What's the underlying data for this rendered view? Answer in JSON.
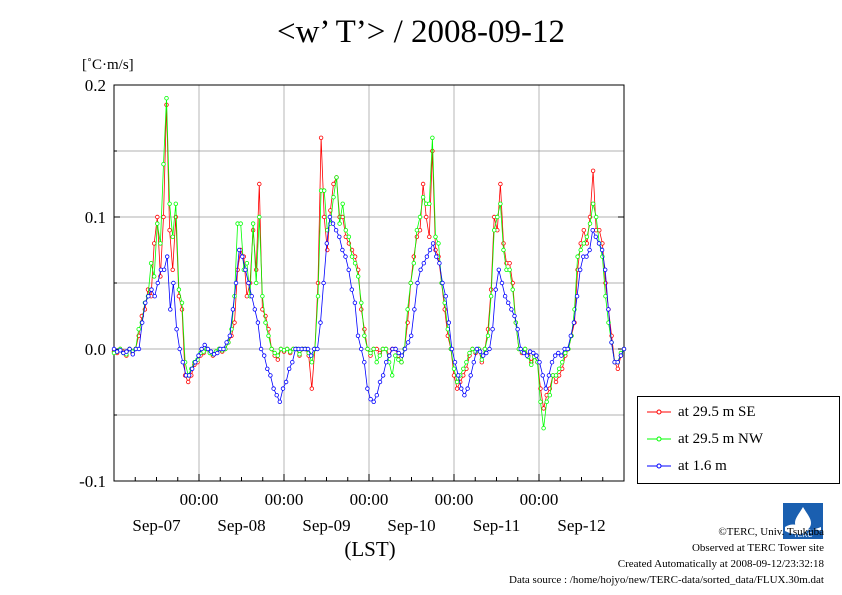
{
  "chart_data": {
    "type": "line",
    "title": "<w’ T’> / 2008-09-12",
    "unit_label": "[˚C·m/s]",
    "xlabel": "(LST)",
    "ylabel": "",
    "ylim": [
      -0.1,
      0.2
    ],
    "y_ticks": [
      "0.2",
      "0.1",
      "0.0",
      "-0.1"
    ],
    "y_tick_values": [
      0.2,
      0.1,
      0.0,
      -0.1
    ],
    "x_time_ticks": [
      "00:00",
      "00:00",
      "00:00",
      "00:00",
      "00:00"
    ],
    "x_date_ticks": [
      "Sep-07",
      "Sep-08",
      "Sep-09",
      "Sep-10",
      "Sep-11",
      "Sep-12"
    ],
    "xlim_hours": [
      0,
      144
    ],
    "grid": true,
    "legend_position": "right",
    "series": [
      {
        "name": "at 29.5 m SE",
        "color": "#ff0000",
        "values": [
          -0.002,
          -0.003,
          0.0,
          -0.002,
          -0.005,
          0.0,
          -0.003,
          0.0,
          0.01,
          0.025,
          0.03,
          0.045,
          0.04,
          0.08,
          0.1,
          0.055,
          0.1,
          0.185,
          0.09,
          0.06,
          0.1,
          0.04,
          0.03,
          -0.02,
          -0.025,
          -0.02,
          -0.012,
          -0.01,
          -0.005,
          -0.003,
          0.0,
          -0.002,
          -0.005,
          -0.003,
          0.0,
          -0.002,
          0.0,
          0.005,
          0.01,
          0.02,
          0.06,
          0.075,
          0.07,
          0.04,
          0.05,
          0.09,
          0.06,
          0.125,
          0.03,
          0.025,
          0.015,
          0.0,
          -0.005,
          -0.008,
          0.0,
          -0.002,
          0.0,
          -0.003,
          0.0,
          0.0,
          -0.005,
          0.0,
          0.0,
          -0.005,
          -0.03,
          0.0,
          0.05,
          0.16,
          0.1,
          0.075,
          0.105,
          0.125,
          0.13,
          0.1,
          0.1,
          0.085,
          0.08,
          0.075,
          0.07,
          0.06,
          0.03,
          0.015,
          0.0,
          -0.005,
          0.0,
          0.0,
          -0.003,
          0.0,
          0.0,
          -0.005,
          0.0,
          0.0,
          -0.005,
          -0.01,
          0.0,
          0.02,
          0.05,
          0.07,
          0.085,
          0.09,
          0.125,
          0.1,
          0.085,
          0.15,
          0.075,
          0.07,
          0.05,
          0.03,
          0.01,
          0.0,
          -0.02,
          -0.03,
          -0.025,
          -0.02,
          -0.015,
          -0.005,
          0.0,
          -0.003,
          0.0,
          -0.01,
          0.0,
          0.015,
          0.045,
          0.1,
          0.09,
          0.125,
          0.08,
          0.065,
          0.065,
          0.05,
          0.02,
          0.0,
          -0.003,
          0.0,
          -0.005,
          -0.01,
          -0.005,
          -0.01,
          -0.03,
          -0.045,
          -0.035,
          -0.03,
          -0.02,
          -0.025,
          -0.02,
          -0.015,
          -0.005,
          0.0,
          0.01,
          0.02,
          0.06,
          0.08,
          0.09,
          0.08,
          0.1,
          0.135,
          0.09,
          0.09,
          0.08,
          0.05,
          0.03,
          0.01,
          -0.01,
          -0.015,
          -0.005,
          0.0
        ]
      },
      {
        "name": "at 29.5 m NW",
        "color": "#00ff00",
        "values": [
          -0.003,
          -0.002,
          0.0,
          -0.003,
          -0.004,
          0.0,
          -0.002,
          0.0,
          0.015,
          0.02,
          0.035,
          0.04,
          0.065,
          0.055,
          0.095,
          0.08,
          0.14,
          0.19,
          0.11,
          0.085,
          0.11,
          0.045,
          0.035,
          -0.01,
          -0.02,
          -0.015,
          -0.01,
          -0.008,
          -0.003,
          -0.002,
          0.0,
          -0.003,
          -0.004,
          -0.002,
          0.0,
          -0.001,
          0.0,
          0.005,
          0.015,
          0.04,
          0.095,
          0.095,
          0.06,
          0.065,
          0.04,
          0.095,
          0.05,
          0.1,
          0.04,
          0.02,
          0.01,
          0.0,
          -0.003,
          -0.005,
          0.0,
          -0.001,
          0.0,
          -0.002,
          0.0,
          0.0,
          -0.004,
          0.0,
          0.0,
          -0.003,
          -0.01,
          0.0,
          0.04,
          0.12,
          0.12,
          0.09,
          0.095,
          0.115,
          0.13,
          0.095,
          0.11,
          0.09,
          0.085,
          0.07,
          0.065,
          0.055,
          0.035,
          0.01,
          0.0,
          -0.003,
          0.0,
          -0.01,
          -0.005,
          0.0,
          0.0,
          -0.01,
          -0.02,
          -0.005,
          -0.008,
          -0.01,
          0.0,
          0.03,
          0.05,
          0.065,
          0.09,
          0.1,
          0.115,
          0.11,
          0.11,
          0.16,
          0.085,
          0.08,
          0.05,
          0.035,
          0.015,
          0.0,
          -0.015,
          -0.025,
          -0.02,
          -0.015,
          -0.01,
          -0.003,
          0.0,
          -0.002,
          0.0,
          -0.008,
          0.0,
          0.01,
          0.04,
          0.09,
          0.1,
          0.11,
          0.075,
          0.06,
          0.06,
          0.045,
          0.02,
          0.0,
          -0.002,
          0.0,
          -0.006,
          -0.012,
          -0.006,
          -0.01,
          -0.04,
          -0.06,
          -0.04,
          -0.035,
          -0.02,
          -0.02,
          -0.015,
          -0.01,
          -0.003,
          0.0,
          0.01,
          0.03,
          0.07,
          0.075,
          0.08,
          0.085,
          0.095,
          0.11,
          0.1,
          0.08,
          0.07,
          0.04,
          0.02,
          0.005,
          -0.01,
          -0.01,
          -0.003,
          0.0
        ]
      },
      {
        "name": "at 1.6 m",
        "color": "#0000ff",
        "values": [
          0.0,
          -0.002,
          -0.001,
          -0.003,
          -0.002,
          0.0,
          -0.004,
          0.0,
          0.0,
          0.02,
          0.035,
          0.04,
          0.045,
          0.04,
          0.05,
          0.06,
          0.06,
          0.07,
          0.03,
          0.05,
          0.015,
          0.0,
          -0.01,
          -0.02,
          -0.02,
          -0.015,
          -0.01,
          -0.005,
          0.0,
          0.003,
          0.0,
          -0.002,
          -0.004,
          -0.003,
          0.0,
          0.0,
          0.005,
          0.01,
          0.03,
          0.05,
          0.075,
          0.07,
          0.06,
          0.05,
          0.04,
          0.03,
          0.02,
          0.0,
          -0.005,
          -0.015,
          -0.02,
          -0.03,
          -0.035,
          -0.04,
          -0.03,
          -0.025,
          -0.015,
          -0.01,
          0.0,
          0.0,
          0.0,
          0.0,
          0.0,
          -0.005,
          0.0,
          0.0,
          0.02,
          0.05,
          0.08,
          0.1,
          0.095,
          0.09,
          0.085,
          0.075,
          0.07,
          0.06,
          0.045,
          0.035,
          0.01,
          0.0,
          -0.01,
          -0.03,
          -0.038,
          -0.04,
          -0.035,
          -0.025,
          -0.02,
          -0.01,
          -0.005,
          0.0,
          0.0,
          -0.003,
          -0.005,
          0.0,
          0.005,
          0.01,
          0.03,
          0.05,
          0.06,
          0.065,
          0.07,
          0.075,
          0.08,
          0.07,
          0.065,
          0.05,
          0.04,
          0.02,
          0.0,
          -0.01,
          -0.02,
          -0.03,
          -0.035,
          -0.03,
          -0.02,
          -0.01,
          0.0,
          -0.002,
          -0.005,
          -0.003,
          0.0,
          0.015,
          0.045,
          0.06,
          0.05,
          0.04,
          0.035,
          0.03,
          0.025,
          0.015,
          0.0,
          -0.003,
          -0.005,
          -0.002,
          -0.003,
          -0.005,
          -0.01,
          -0.02,
          -0.03,
          -0.02,
          -0.01,
          -0.005,
          -0.003,
          -0.005,
          0.0,
          0.0,
          0.01,
          0.02,
          0.04,
          0.06,
          0.07,
          0.07,
          0.075,
          0.09,
          0.085,
          0.08,
          0.075,
          0.06,
          0.03,
          0.005,
          -0.01,
          -0.01,
          -0.005,
          0.0
        ]
      }
    ]
  },
  "credits": {
    "copyright": "©TERC, Univ. Tsukuba",
    "observed": "Observed at TERC Tower site",
    "created": "Created Automatically at 2008-09-12/23:32:18",
    "source": "Data source : /home/hojyo/new/TERC-data/sorted_data/FLUX.30m.dat"
  },
  "logo_text": "TERC"
}
